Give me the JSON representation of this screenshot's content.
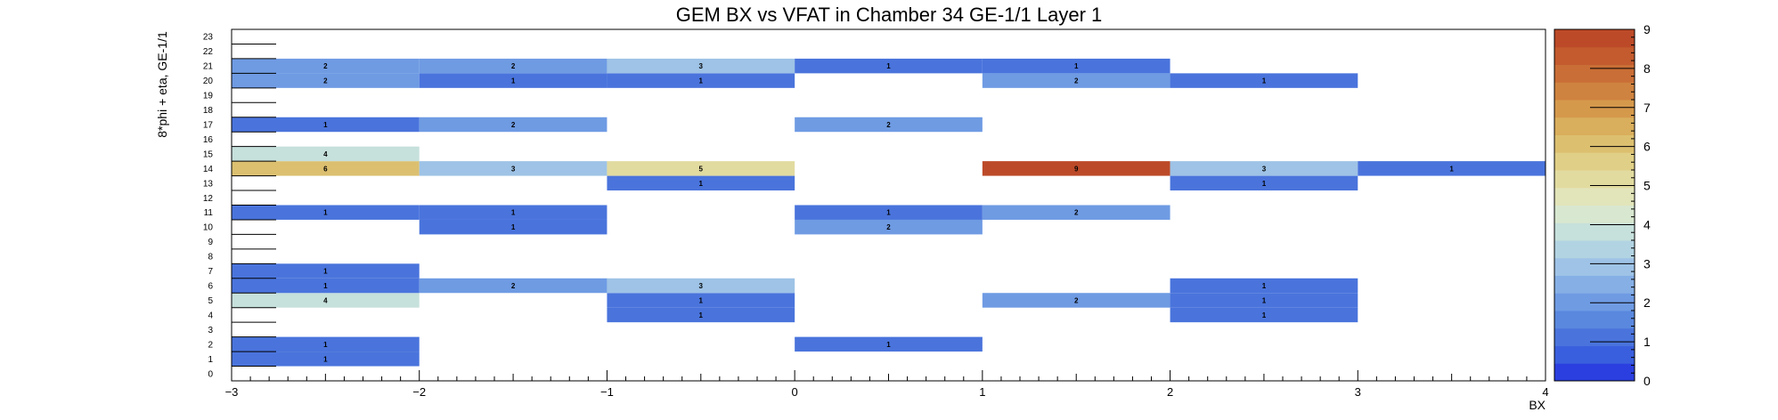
{
  "chart_data": {
    "type": "heatmap",
    "title": "GEM BX vs VFAT in Chamber 34 GE-1/1 Layer 1",
    "xlabel": "BX",
    "ylabel": "8*phi + eta, GE-1/1",
    "xlim": [
      -3,
      4
    ],
    "ylim": [
      0,
      24
    ],
    "x_ticks": [
      "−3",
      "−2",
      "−1",
      "0",
      "1",
      "2",
      "3",
      "4"
    ],
    "y_ticks": [
      "0",
      "1",
      "2",
      "3",
      "4",
      "5",
      "6",
      "7",
      "8",
      "9",
      "10",
      "11",
      "12",
      "13",
      "14",
      "15",
      "16",
      "17",
      "18",
      "19",
      "20",
      "21",
      "22",
      "23"
    ],
    "z_range": [
      0,
      9
    ],
    "z_ticks": [
      "0",
      "1",
      "2",
      "3",
      "4",
      "5",
      "6",
      "7",
      "8",
      "9"
    ],
    "cells": [
      {
        "x": -3,
        "y": 1,
        "value": 1
      },
      {
        "x": -3,
        "y": 2,
        "value": 1
      },
      {
        "x": 0,
        "y": 2,
        "value": 1
      },
      {
        "x": -1,
        "y": 4,
        "value": 1
      },
      {
        "x": 2,
        "y": 4,
        "value": 1
      },
      {
        "x": -3,
        "y": 5,
        "value": 4
      },
      {
        "x": -1,
        "y": 5,
        "value": 1
      },
      {
        "x": 1,
        "y": 5,
        "value": 2
      },
      {
        "x": 2,
        "y": 5,
        "value": 1
      },
      {
        "x": -3,
        "y": 6,
        "value": 1
      },
      {
        "x": -2,
        "y": 6,
        "value": 2
      },
      {
        "x": -1,
        "y": 6,
        "value": 3
      },
      {
        "x": 2,
        "y": 6,
        "value": 1
      },
      {
        "x": -3,
        "y": 7,
        "value": 1
      },
      {
        "x": -2,
        "y": 10,
        "value": 1
      },
      {
        "x": 0,
        "y": 10,
        "value": 2
      },
      {
        "x": -3,
        "y": 11,
        "value": 1
      },
      {
        "x": -2,
        "y": 11,
        "value": 1
      },
      {
        "x": 0,
        "y": 11,
        "value": 1
      },
      {
        "x": 1,
        "y": 11,
        "value": 2
      },
      {
        "x": -1,
        "y": 13,
        "value": 1
      },
      {
        "x": 2,
        "y": 13,
        "value": 1
      },
      {
        "x": -3,
        "y": 14,
        "value": 6
      },
      {
        "x": -2,
        "y": 14,
        "value": 3
      },
      {
        "x": -1,
        "y": 14,
        "value": 5
      },
      {
        "x": 1,
        "y": 14,
        "value": 9
      },
      {
        "x": 2,
        "y": 14,
        "value": 3
      },
      {
        "x": 3,
        "y": 14,
        "value": 1
      },
      {
        "x": -3,
        "y": 15,
        "value": 4
      },
      {
        "x": -3,
        "y": 17,
        "value": 1
      },
      {
        "x": -2,
        "y": 17,
        "value": 2
      },
      {
        "x": 0,
        "y": 17,
        "value": 2
      },
      {
        "x": -3,
        "y": 20,
        "value": 2
      },
      {
        "x": -2,
        "y": 20,
        "value": 1
      },
      {
        "x": -1,
        "y": 20,
        "value": 1
      },
      {
        "x": 1,
        "y": 20,
        "value": 2
      },
      {
        "x": 2,
        "y": 20,
        "value": 1
      },
      {
        "x": -3,
        "y": 21,
        "value": 2
      },
      {
        "x": -2,
        "y": 21,
        "value": 2
      },
      {
        "x": -1,
        "y": 21,
        "value": 3
      },
      {
        "x": 0,
        "y": 21,
        "value": 1
      },
      {
        "x": 1,
        "y": 21,
        "value": 1
      }
    ],
    "palette_colors": [
      "#2b3fe0",
      "#3a5fde",
      "#4a74dc",
      "#5a88de",
      "#6f9be3",
      "#86afe6",
      "#9ec3e6",
      "#b2d3e2",
      "#c6e0db",
      "#d8e7cf",
      "#e2e4b9",
      "#e2dba0",
      "#e0cf86",
      "#dcc070",
      "#d9ae5c",
      "#d5994c",
      "#cf8340",
      "#c96e36",
      "#c35b2e",
      "#bc4a28"
    ],
    "grid": false,
    "legend": "color palette on the right"
  }
}
